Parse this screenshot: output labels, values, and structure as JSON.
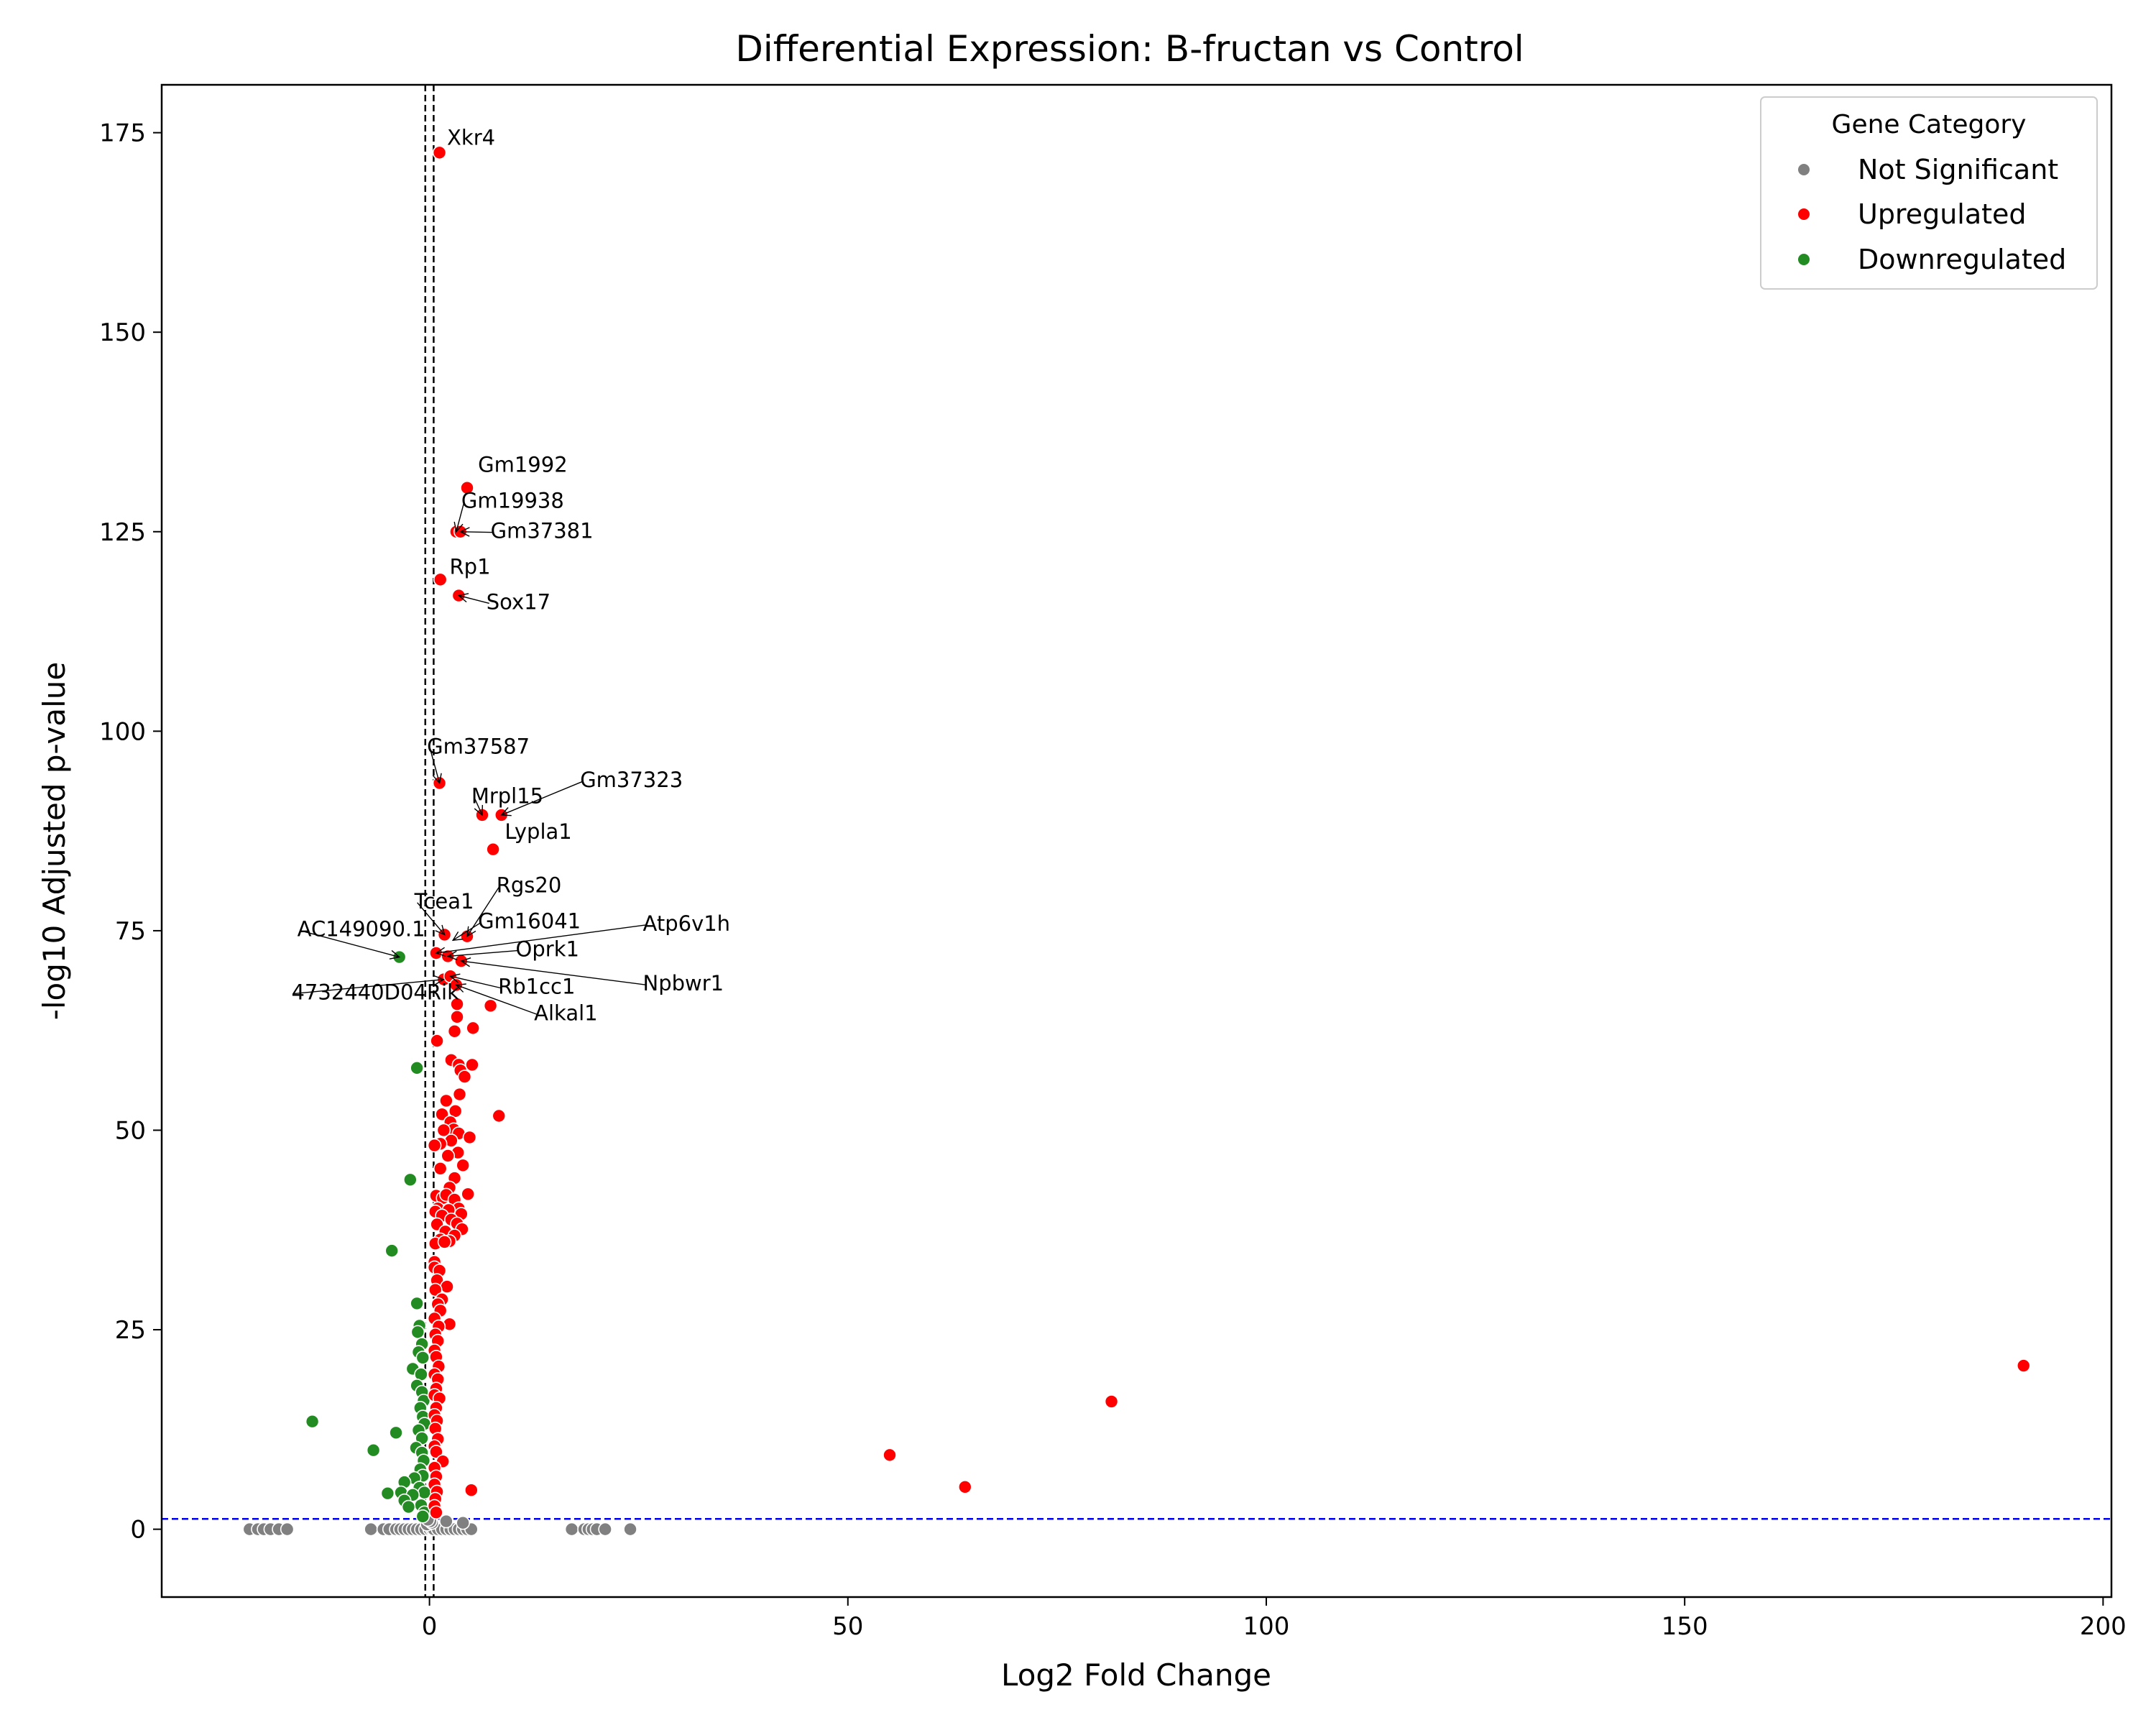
{
  "chart_data": {
    "type": "scatter",
    "title": "Differential Expression: B-fructan vs Control",
    "xlabel": "Log2 Fold Change",
    "ylabel": "-log10 Adjusted p-value",
    "xlim": [
      -32,
      201
    ],
    "ylim": [
      -8.5,
      181
    ],
    "xticks": [
      0,
      50,
      100,
      150,
      200
    ],
    "yticks": [
      0,
      25,
      50,
      75,
      100,
      125,
      150,
      175
    ],
    "grid": false,
    "legend_position": "top-right",
    "legend_title": "Gene Category",
    "thresholds": {
      "padj_line": 1.3,
      "log2fc_lines": [
        -0.5,
        0.5
      ]
    },
    "colors": {
      "not_significant": "#808080",
      "upregulated": "#ff0000",
      "downregulated": "#228b22",
      "padj_line": "#0000ff",
      "fc_lines": "#000000"
    },
    "series": [
      {
        "name": "Not Significant",
        "key": "ns",
        "points": [
          [
            -21.5,
            0
          ],
          [
            -20.5,
            0
          ],
          [
            -19.8,
            0
          ],
          [
            -19,
            0
          ],
          [
            -18,
            0
          ],
          [
            -17,
            0
          ],
          [
            -7,
            0
          ],
          [
            -5.5,
            0
          ],
          [
            -4.8,
            0
          ],
          [
            -4,
            0
          ],
          [
            -3.5,
            0
          ],
          [
            -3,
            0
          ],
          [
            -2.5,
            0
          ],
          [
            -2,
            0
          ],
          [
            -1.5,
            0
          ],
          [
            -1,
            0
          ],
          [
            -0.5,
            0
          ],
          [
            0,
            0
          ],
          [
            0.3,
            0
          ],
          [
            0.5,
            0
          ],
          [
            1,
            0
          ],
          [
            1.5,
            0
          ],
          [
            2,
            0
          ],
          [
            2.5,
            0
          ],
          [
            3,
            0
          ],
          [
            3.5,
            0
          ],
          [
            4,
            0
          ],
          [
            4.5,
            0
          ],
          [
            5,
            0
          ],
          [
            17,
            0
          ],
          [
            18.5,
            0
          ],
          [
            19,
            0
          ],
          [
            19.5,
            0
          ],
          [
            20,
            0
          ],
          [
            21,
            0
          ],
          [
            24,
            0
          ],
          [
            -0.3,
            0.6
          ],
          [
            0.3,
            0.8
          ],
          [
            0.1,
            1.0
          ],
          [
            -0.2,
            1.2
          ],
          [
            2,
            1.0
          ],
          [
            4,
            0.8
          ]
        ]
      },
      {
        "name": "Upregulated",
        "key": "up",
        "points": [
          [
            1.2,
            172.5
          ],
          [
            4.5,
            130.5
          ],
          [
            3.2,
            125
          ],
          [
            3.7,
            125
          ],
          [
            1.3,
            119
          ],
          [
            3.5,
            117
          ],
          [
            1.2,
            93.5
          ],
          [
            6.3,
            89.5
          ],
          [
            8.6,
            89.5
          ],
          [
            7.6,
            85.2
          ],
          [
            1.8,
            74.5
          ],
          [
            4.5,
            74.3
          ],
          [
            0.8,
            72.2
          ],
          [
            2.2,
            71.8
          ],
          [
            3.8,
            71.2
          ],
          [
            1.7,
            68.9
          ],
          [
            2.5,
            69.3
          ],
          [
            3.2,
            68.2
          ],
          [
            7.3,
            65.6
          ],
          [
            3.3,
            65.8
          ],
          [
            5.2,
            62.8
          ],
          [
            3.3,
            64.2
          ],
          [
            0.9,
            61.2
          ],
          [
            3.0,
            62.4
          ],
          [
            2.6,
            58.8
          ],
          [
            3.5,
            58.2
          ],
          [
            5.1,
            58.2
          ],
          [
            3.7,
            57.5
          ],
          [
            4.2,
            56.7
          ],
          [
            8.3,
            51.8
          ],
          [
            3.6,
            54.5
          ],
          [
            2.0,
            53.7
          ],
          [
            3.1,
            52.4
          ],
          [
            1.5,
            52.0
          ],
          [
            2.5,
            51.0
          ],
          [
            2.9,
            50.1
          ],
          [
            1.7,
            50.0
          ],
          [
            3.5,
            49.6
          ],
          [
            4.8,
            49.1
          ],
          [
            2.6,
            48.7
          ],
          [
            1.3,
            48.3
          ],
          [
            3.4,
            47.2
          ],
          [
            0.6,
            48.1
          ],
          [
            2.2,
            46.8
          ],
          [
            4.0,
            45.6
          ],
          [
            1.3,
            45.2
          ],
          [
            3.0,
            44.0
          ],
          [
            2.4,
            42.8
          ],
          [
            4.6,
            42.0
          ],
          [
            0.8,
            41.8
          ],
          [
            1.6,
            41.5
          ],
          [
            2.0,
            41.9
          ],
          [
            3.0,
            41.3
          ],
          [
            3.5,
            40.2
          ],
          [
            1.0,
            40.2
          ],
          [
            2.3,
            40.0
          ],
          [
            3.8,
            39.5
          ],
          [
            0.7,
            39.8
          ],
          [
            1.5,
            39.3
          ],
          [
            2.6,
            38.8
          ],
          [
            3.3,
            38.3
          ],
          [
            3.9,
            37.6
          ],
          [
            0.9,
            38.2
          ],
          [
            1.9,
            37.3
          ],
          [
            3.0,
            36.8
          ],
          [
            1.3,
            36.3
          ],
          [
            2.4,
            36.1
          ],
          [
            0.7,
            35.8
          ],
          [
            1.8,
            36.0
          ],
          [
            0.6,
            33.5
          ],
          [
            0.6,
            32.8
          ],
          [
            1.2,
            32.4
          ],
          [
            0.9,
            31.2
          ],
          [
            2.1,
            30.4
          ],
          [
            0.7,
            30.0
          ],
          [
            1.5,
            28.8
          ],
          [
            1.0,
            28.2
          ],
          [
            1.3,
            27.4
          ],
          [
            0.6,
            26.4
          ],
          [
            2.4,
            25.7
          ],
          [
            1.1,
            25.4
          ],
          [
            0.7,
            24.4
          ],
          [
            1.0,
            23.6
          ],
          [
            0.6,
            22.4
          ],
          [
            0.8,
            21.6
          ],
          [
            1.1,
            20.4
          ],
          [
            0.6,
            19.4
          ],
          [
            1.0,
            18.8
          ],
          [
            0.8,
            17.6
          ],
          [
            0.6,
            16.8
          ],
          [
            1.2,
            16.4
          ],
          [
            0.8,
            15.2
          ],
          [
            0.6,
            14.3
          ],
          [
            0.9,
            13.6
          ],
          [
            0.7,
            12.6
          ],
          [
            1.0,
            11.3
          ],
          [
            0.6,
            10.4
          ],
          [
            0.8,
            9.7
          ],
          [
            1.6,
            8.5
          ],
          [
            0.6,
            7.7
          ],
          [
            0.8,
            6.6
          ],
          [
            0.6,
            5.6
          ],
          [
            0.9,
            4.7
          ],
          [
            5.0,
            4.9
          ],
          [
            0.7,
            3.8
          ],
          [
            0.6,
            2.9
          ],
          [
            0.8,
            2.1
          ],
          [
            190.5,
            20.5
          ],
          [
            81.5,
            16.0
          ],
          [
            55.0,
            9.3
          ],
          [
            64.0,
            5.3
          ]
        ]
      },
      {
        "name": "Downregulated",
        "key": "down",
        "points": [
          [
            -3.6,
            71.7
          ],
          [
            -1.5,
            57.8
          ],
          [
            -2.3,
            43.8
          ],
          [
            -4.5,
            34.9
          ],
          [
            -1.5,
            28.3
          ],
          [
            -1.2,
            25.5
          ],
          [
            -1.4,
            24.7
          ],
          [
            -0.9,
            23.2
          ],
          [
            -1.3,
            22.2
          ],
          [
            -0.8,
            21.5
          ],
          [
            -2.0,
            20.1
          ],
          [
            -1.0,
            19.4
          ],
          [
            -1.5,
            18.0
          ],
          [
            -0.9,
            17.2
          ],
          [
            -0.7,
            16.1
          ],
          [
            -1.1,
            15.2
          ],
          [
            -0.8,
            14.1
          ],
          [
            -0.6,
            13.2
          ],
          [
            -14.0,
            13.5
          ],
          [
            -4.0,
            12.1
          ],
          [
            -1.3,
            12.4
          ],
          [
            -0.9,
            11.4
          ],
          [
            -6.7,
            9.9
          ],
          [
            -1.6,
            10.2
          ],
          [
            -0.9,
            9.6
          ],
          [
            -0.7,
            8.6
          ],
          [
            -1.1,
            7.5
          ],
          [
            -0.8,
            6.7
          ],
          [
            -1.8,
            6.4
          ],
          [
            -3.0,
            5.9
          ],
          [
            -1.2,
            5.2
          ],
          [
            -0.6,
            4.6
          ],
          [
            -5.0,
            4.5
          ],
          [
            -3.4,
            4.6
          ],
          [
            -2.0,
            4.3
          ],
          [
            -3.0,
            3.6
          ],
          [
            -1.0,
            3.0
          ],
          [
            -0.6,
            2.1
          ],
          [
            -2.5,
            2.8
          ],
          [
            -0.8,
            1.6
          ]
        ]
      }
    ],
    "annotations": [
      {
        "text": "Xkr4",
        "point": [
          1.2,
          172.5
        ],
        "label": [
          2.1,
          173.5
        ],
        "arrow": false
      },
      {
        "text": "Gm1992",
        "point": [
          4.5,
          130.5
        ],
        "label": [
          5.8,
          132.5
        ],
        "arrow": false
      },
      {
        "text": "Gm19938",
        "point": [
          3.2,
          125
        ],
        "label": [
          3.8,
          128.0
        ],
        "arrow": true
      },
      {
        "text": "Gm37381",
        "point": [
          3.7,
          125
        ],
        "label": [
          7.3,
          124.2
        ],
        "arrow": true
      },
      {
        "text": "Rp1",
        "point": [
          1.3,
          119
        ],
        "label": [
          2.4,
          119.7
        ],
        "arrow": false
      },
      {
        "text": "Sox17",
        "point": [
          3.5,
          117
        ],
        "label": [
          6.8,
          115.3
        ],
        "arrow": true
      },
      {
        "text": "Gm37587",
        "point": [
          1.2,
          93.5
        ],
        "label": [
          -0.3,
          97.2
        ],
        "arrow": true
      },
      {
        "text": "Gm37323",
        "point": [
          8.6,
          89.5
        ],
        "label": [
          18.0,
          93.0
        ],
        "arrow": true
      },
      {
        "text": "Mrpl15",
        "point": [
          6.3,
          89.5
        ],
        "label": [
          5.0,
          91.0
        ],
        "arrow": true
      },
      {
        "text": "Lypla1",
        "point": [
          7.6,
          85.2
        ],
        "label": [
          9.0,
          86.5
        ],
        "arrow": false
      },
      {
        "text": "Rgs20",
        "point": [
          4.5,
          74.3
        ],
        "label": [
          8.0,
          79.8
        ],
        "arrow": true
      },
      {
        "text": "Tcea1",
        "point": [
          1.8,
          74.5
        ],
        "label": [
          -1.8,
          77.8
        ],
        "arrow": true
      },
      {
        "text": "Gm16041",
        "point": [
          2.8,
          73.8
        ],
        "label": [
          5.8,
          75.3
        ],
        "arrow": true
      },
      {
        "text": "Atp6v1h",
        "point": [
          0.8,
          72.2
        ],
        "label": [
          25.5,
          75.0
        ],
        "arrow": true
      },
      {
        "text": "AC149090.1",
        "point": [
          -3.6,
          71.7
        ],
        "label": [
          -15.8,
          74.3
        ],
        "arrow": true
      },
      {
        "text": "Oprk1",
        "point": [
          2.2,
          71.8
        ],
        "label": [
          10.3,
          71.8
        ],
        "arrow": true
      },
      {
        "text": "Npbwr1",
        "point": [
          3.8,
          71.2
        ],
        "label": [
          25.5,
          67.5
        ],
        "arrow": true
      },
      {
        "text": "Rb1cc1",
        "point": [
          2.5,
          69.3
        ],
        "label": [
          8.2,
          67.1
        ],
        "arrow": true
      },
      {
        "text": "4732440D04Rik",
        "point": [
          1.7,
          68.9
        ],
        "label": [
          -16.5,
          66.4
        ],
        "arrow": true
      },
      {
        "text": "Alkal1",
        "point": [
          3.2,
          68.2
        ],
        "label": [
          12.5,
          63.8
        ],
        "arrow": true
      }
    ]
  }
}
